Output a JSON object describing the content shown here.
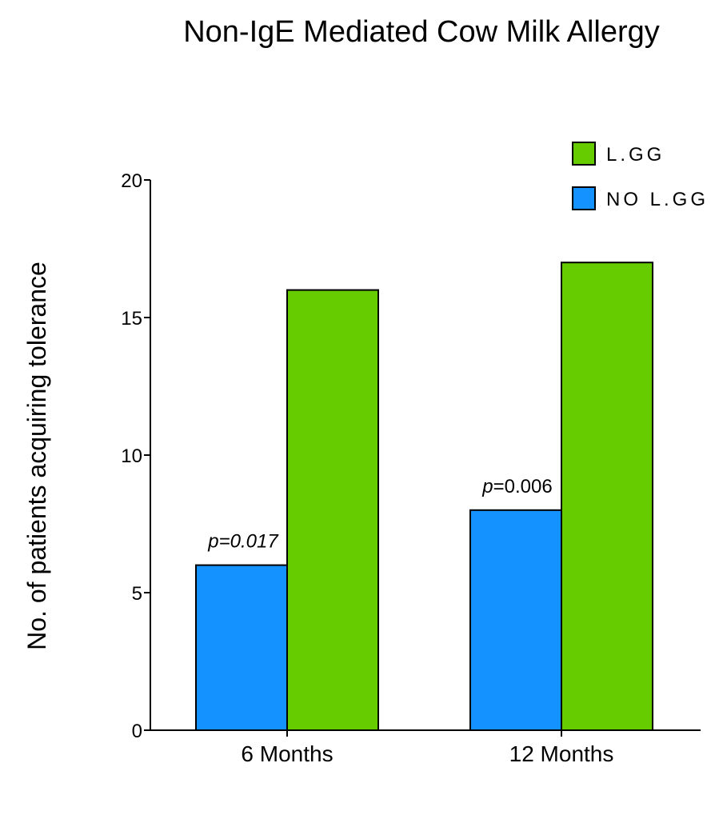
{
  "chart_data": {
    "type": "bar",
    "title": "Non-IgE Mediated Cow Milk Allergy",
    "xlabel": "",
    "ylabel": "No. of patients acquiring tolerance",
    "ylim": [
      0,
      20
    ],
    "yticks": [
      "0",
      "5",
      "10",
      "15",
      "20"
    ],
    "categories": [
      "6 Months",
      "12 Months"
    ],
    "series": [
      {
        "name": "NO L.GG",
        "color": "#1492FF",
        "values": [
          6,
          8
        ]
      },
      {
        "name": "L.GG",
        "color": "#66CC00",
        "values": [
          16,
          17
        ]
      }
    ],
    "legend": {
      "placement": "top-right",
      "order": [
        "L.GG",
        "NO L.GG"
      ]
    },
    "annotations": [
      {
        "category": "6 Months",
        "series": "NO L.GG",
        "prefix": "p",
        "text": "=0.017",
        "style": "all-italic"
      },
      {
        "category": "12 Months",
        "series": "NO L.GG",
        "prefix": "p",
        "text": "=0.006",
        "style": "prefix-italic"
      }
    ],
    "grid": false
  }
}
